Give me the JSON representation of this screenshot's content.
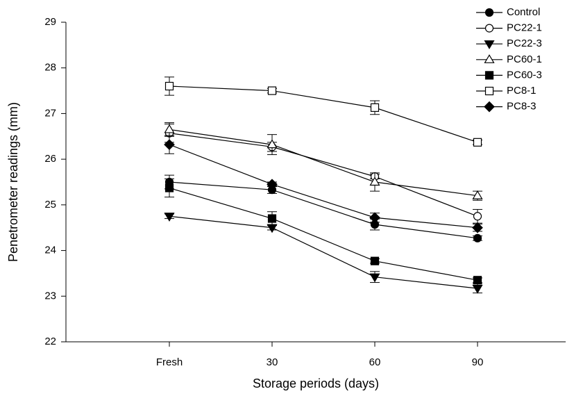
{
  "chart_data": {
    "type": "line",
    "x_label": "Storage periods (days)",
    "y_label": "Penetrometer readings (mm)",
    "categories": [
      "Fresh",
      "30",
      "60",
      "90"
    ],
    "ylim": [
      22,
      29
    ],
    "yticks": [
      22,
      23,
      24,
      25,
      26,
      27,
      28,
      29
    ],
    "legend": "top-right",
    "series": [
      {
        "name": "Control",
        "color": "#000000",
        "marker": "circle",
        "filled": true,
        "values": [
          25.5,
          25.33,
          24.57,
          24.27
        ],
        "errors": [
          0.15,
          0.08,
          0.12,
          0.05
        ]
      },
      {
        "name": "PC22-1",
        "color": "#000000",
        "marker": "circle",
        "filled": false,
        "values": [
          26.57,
          26.27,
          25.62,
          24.75
        ],
        "errors": [
          0.2,
          0.1,
          0.05,
          0.15
        ]
      },
      {
        "name": "PC22-3",
        "color": "#000000",
        "marker": "triangle-down",
        "filled": true,
        "values": [
          24.75,
          24.5,
          23.42,
          23.17
        ],
        "errors": [
          0.05,
          0.05,
          0.12,
          0.1
        ]
      },
      {
        "name": "PC60-1",
        "color": "#000000",
        "marker": "triangle-up",
        "filled": false,
        "values": [
          26.65,
          26.32,
          25.5,
          25.2
        ],
        "errors": [
          0.15,
          0.22,
          0.2,
          0.1
        ]
      },
      {
        "name": "PC60-3",
        "color": "#000000",
        "marker": "square",
        "filled": true,
        "values": [
          25.37,
          24.7,
          23.77,
          23.35
        ],
        "errors": [
          0.2,
          0.15,
          0.05,
          0.05
        ]
      },
      {
        "name": "PC8-1",
        "color": "#000000",
        "marker": "square",
        "filled": false,
        "values": [
          27.6,
          27.5,
          27.13,
          26.37
        ],
        "errors": [
          0.2,
          0.05,
          0.15,
          0.05
        ]
      },
      {
        "name": "PC8-3",
        "color": "#000000",
        "marker": "diamond",
        "filled": true,
        "values": [
          26.32,
          25.45,
          24.72,
          24.5
        ],
        "errors": [
          0.2,
          0.05,
          0.1,
          0.08
        ]
      }
    ]
  }
}
